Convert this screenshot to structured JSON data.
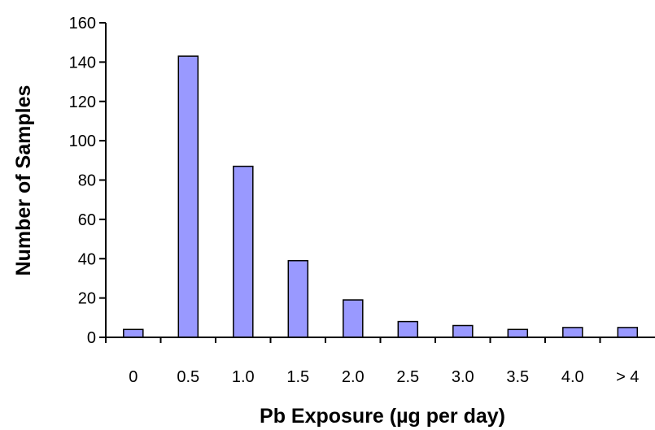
{
  "chart_data": {
    "type": "bar",
    "title": "",
    "xlabel": "Pb Exposure (µg per day)",
    "ylabel": "Number of Samples",
    "categories": [
      "0",
      "0.5",
      "1.0",
      "1.5",
      "2.0",
      "2.5",
      "3.0",
      "3.5",
      "4.0",
      "> 4"
    ],
    "values": [
      4,
      143,
      87,
      39,
      19,
      8,
      6,
      4,
      5,
      5
    ],
    "ylim": [
      0,
      160
    ],
    "yticks": [
      "0",
      "20",
      "40",
      "60",
      "80",
      "100",
      "120",
      "140",
      "160"
    ],
    "grid": false,
    "legend": "none",
    "colors": {
      "bar_fill": "#9999ff",
      "bar_stroke": "#000000",
      "axis": "#000000"
    }
  }
}
